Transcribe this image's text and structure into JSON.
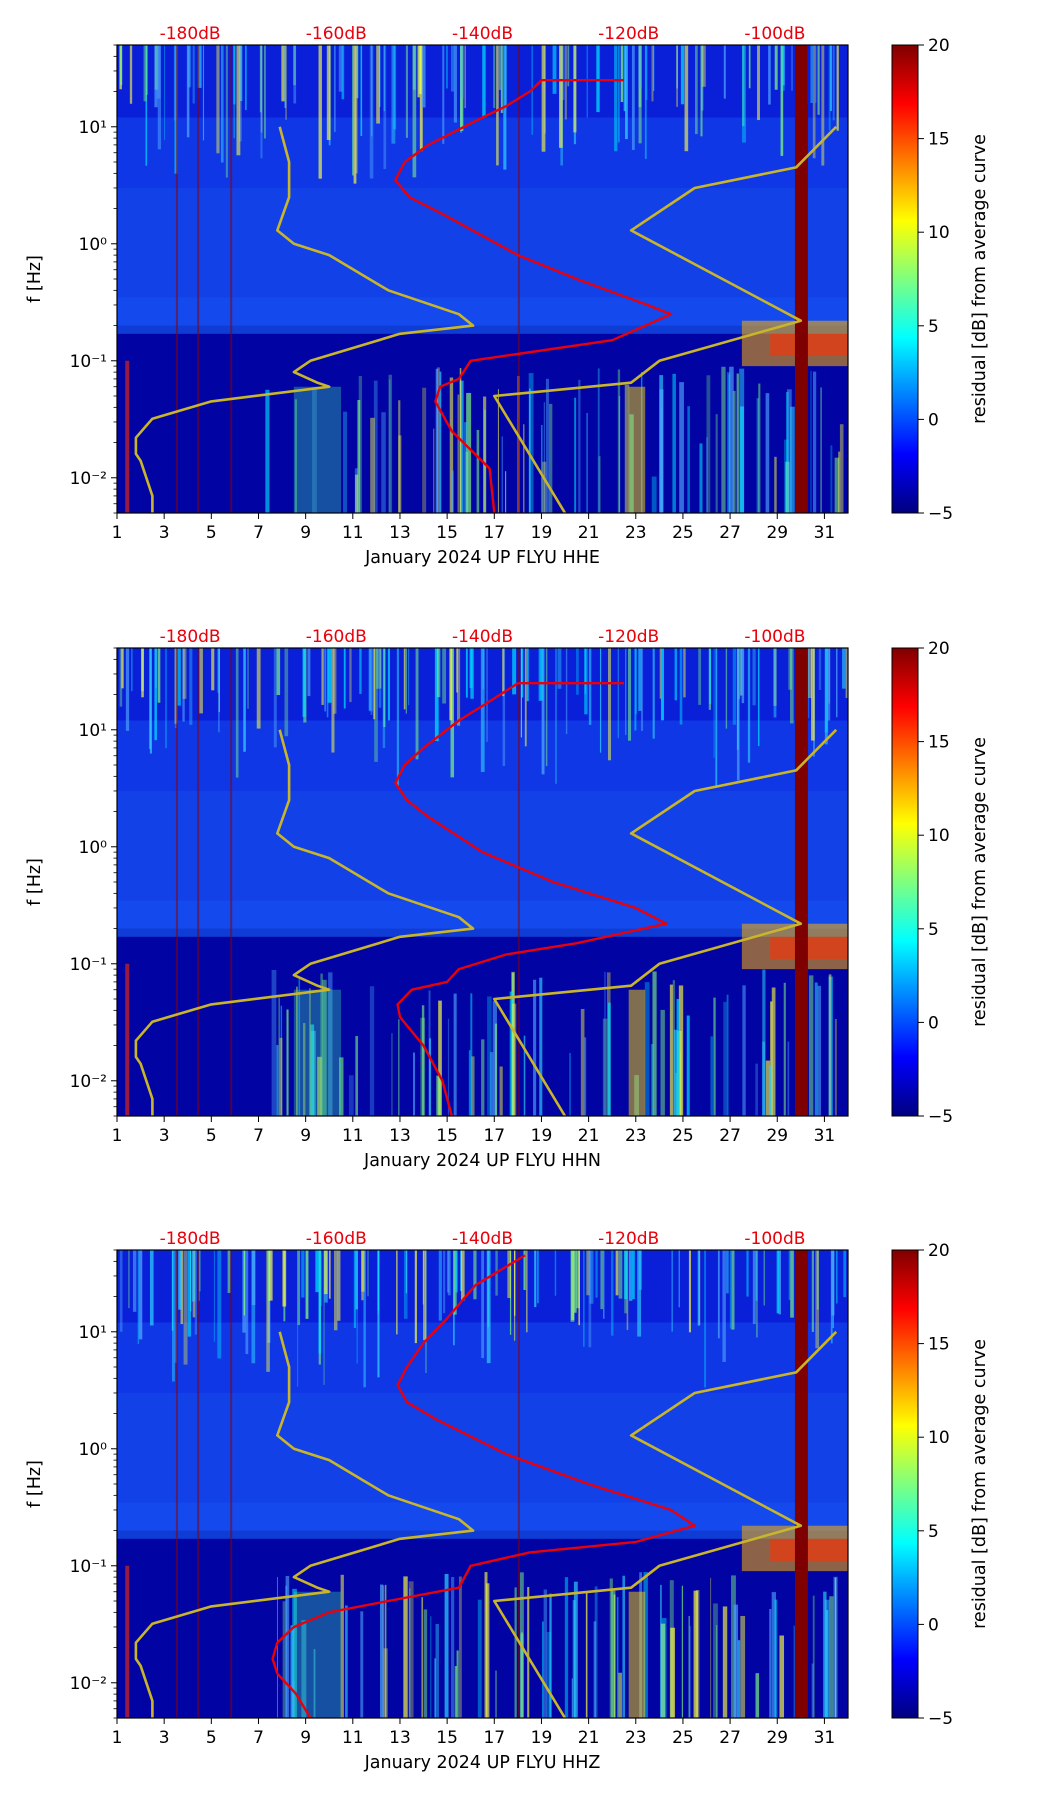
{
  "colors": {
    "red_curve": "#e8000b",
    "yellow_curve": "#c9b52a",
    "top_labels": "#e8000b",
    "colormap": [
      "#00007f",
      "#0000ff",
      "#007fff",
      "#00ffff",
      "#7fff7f",
      "#ffff00",
      "#ff7f00",
      "#ff0000",
      "#7f0000"
    ]
  },
  "chart_data": [
    {
      "type": "heatmap",
      "xlabel": "January 2024 UP FLYU  HHE",
      "ylabel": "f [Hz]",
      "y_scale": "log",
      "xlim": [
        1,
        32
      ],
      "ylim": [
        0.005,
        50
      ],
      "x_ticks": [
        "1",
        "3",
        "5",
        "7",
        "9",
        "11",
        "13",
        "15",
        "17",
        "19",
        "21",
        "23",
        "25",
        "27",
        "29",
        "31"
      ],
      "y_ticks": [
        "10⁻²",
        "10⁻¹",
        "10⁰",
        "10¹"
      ],
      "top_ticks": [
        "-180dB",
        "-160dB",
        "-140dB",
        "-120dB",
        "-100dB"
      ],
      "top_tick_values": [
        -180,
        -160,
        -140,
        -120,
        -100
      ],
      "top_axis_range_dB": [
        -190,
        -90
      ],
      "colorbar": {
        "label": "residual [dB] from average curve",
        "range": [
          -5,
          20
        ],
        "ticks": [
          "−5",
          "0",
          "5",
          "10",
          "15",
          "20"
        ]
      },
      "series": [
        {
          "color": "yellow",
          "x": [
            2.5,
            2.5,
            2.0,
            1.8,
            1.8,
            2.5,
            5.0,
            10.0,
            9.5,
            8.5,
            9.2,
            13.0,
            16.1,
            15.5,
            12.5,
            10.0,
            8.5,
            7.8,
            8.3,
            8.3,
            7.9
          ],
          "y": [
            0.005,
            0.007,
            0.014,
            0.016,
            0.022,
            0.032,
            0.045,
            0.06,
            0.065,
            0.08,
            0.1,
            0.17,
            0.2,
            0.25,
            0.4,
            0.8,
            1.0,
            1.3,
            2.5,
            5.0,
            10.0
          ]
        },
        {
          "color": "yellow",
          "x": [
            20.0,
            17.0,
            22.8,
            24.0,
            30.0,
            22.8,
            25.5,
            29.8,
            31.5
          ],
          "y": [
            0.005,
            0.05,
            0.065,
            0.1,
            0.22,
            1.3,
            3.0,
            4.5,
            10.0
          ]
        },
        {
          "color": "red",
          "x": [
            17.0,
            16.8,
            15.2,
            14.5,
            14.7,
            15.5,
            16.0,
            22.0,
            24.5,
            23.5,
            20.5,
            18.0,
            14.8,
            13.4,
            12.8,
            13.2,
            14.2,
            16.5,
            17.5,
            18.5,
            19.0,
            22.5
          ],
          "y": [
            0.005,
            0.012,
            0.025,
            0.045,
            0.06,
            0.07,
            0.1,
            0.15,
            0.25,
            0.3,
            0.5,
            0.8,
            1.8,
            2.5,
            3.5,
            5.0,
            7.0,
            12.0,
            15.0,
            20.0,
            25.0,
            25.0
          ]
        }
      ]
    },
    {
      "type": "heatmap",
      "xlabel": "January 2024 UP FLYU  HHN",
      "ylabel": "f [Hz]",
      "y_scale": "log",
      "xlim": [
        1,
        32
      ],
      "ylim": [
        0.005,
        50
      ],
      "x_ticks": [
        "1",
        "3",
        "5",
        "7",
        "9",
        "11",
        "13",
        "15",
        "17",
        "19",
        "21",
        "23",
        "25",
        "27",
        "29",
        "31"
      ],
      "y_ticks": [
        "10⁻²",
        "10⁻¹",
        "10⁰",
        "10¹"
      ],
      "top_ticks": [
        "-180dB",
        "-160dB",
        "-140dB",
        "-120dB",
        "-100dB"
      ],
      "top_tick_values": [
        -180,
        -160,
        -140,
        -120,
        -100
      ],
      "top_axis_range_dB": [
        -190,
        -90
      ],
      "colorbar": {
        "label": "residual [dB] from average curve",
        "range": [
          -5,
          20
        ],
        "ticks": [
          "−5",
          "0",
          "5",
          "10",
          "15",
          "20"
        ]
      },
      "series": [
        {
          "color": "yellow",
          "x": [
            2.5,
            2.5,
            2.0,
            1.8,
            1.8,
            2.5,
            5.0,
            10.0,
            9.5,
            8.5,
            9.2,
            13.0,
            16.1,
            15.5,
            12.5,
            10.0,
            8.5,
            7.8,
            8.3,
            8.3,
            7.9
          ],
          "y": [
            0.005,
            0.007,
            0.014,
            0.016,
            0.022,
            0.032,
            0.045,
            0.06,
            0.065,
            0.08,
            0.1,
            0.17,
            0.2,
            0.25,
            0.4,
            0.8,
            1.0,
            1.3,
            2.5,
            5.0,
            10.0
          ]
        },
        {
          "color": "yellow",
          "x": [
            20.0,
            17.0,
            22.8,
            24.0,
            30.0,
            22.8,
            25.5,
            29.8,
            31.5
          ],
          "y": [
            0.005,
            0.05,
            0.065,
            0.1,
            0.22,
            1.3,
            3.0,
            4.5,
            10.0
          ]
        },
        {
          "color": "red",
          "x": [
            15.2,
            14.8,
            14.0,
            13.0,
            12.9,
            13.5,
            15.0,
            15.5,
            17.5,
            20.5,
            24.3,
            23.0,
            19.5,
            16.5,
            14.2,
            13.3,
            12.8,
            13.2,
            14.0,
            15.5,
            16.5,
            18.0,
            22.5
          ],
          "y": [
            0.005,
            0.01,
            0.02,
            0.035,
            0.045,
            0.06,
            0.07,
            0.09,
            0.12,
            0.15,
            0.22,
            0.3,
            0.5,
            0.9,
            1.8,
            2.5,
            3.5,
            5.0,
            7.0,
            12.0,
            16.0,
            25.0,
            25.0
          ]
        }
      ]
    },
    {
      "type": "heatmap",
      "xlabel": "January 2024 UP FLYU  HHZ",
      "ylabel": "f [Hz]",
      "y_scale": "log",
      "xlim": [
        1,
        32
      ],
      "ylim": [
        0.005,
        50
      ],
      "x_ticks": [
        "1",
        "3",
        "5",
        "7",
        "9",
        "11",
        "13",
        "15",
        "17",
        "19",
        "21",
        "23",
        "25",
        "27",
        "29",
        "31"
      ],
      "y_ticks": [
        "10⁻²",
        "10⁻¹",
        "10⁰",
        "10¹"
      ],
      "top_ticks": [
        "-180dB",
        "-160dB",
        "-140dB",
        "-120dB",
        "-100dB"
      ],
      "top_tick_values": [
        -180,
        -160,
        -140,
        -120,
        -100
      ],
      "top_axis_range_dB": [
        -190,
        -90
      ],
      "colorbar": {
        "label": "residual [dB] from average curve",
        "range": [
          -5,
          20
        ],
        "ticks": [
          "−5",
          "0",
          "5",
          "10",
          "15",
          "20"
        ]
      },
      "series": [
        {
          "color": "yellow",
          "x": [
            2.5,
            2.5,
            2.0,
            1.8,
            1.8,
            2.5,
            5.0,
            10.0,
            9.5,
            8.5,
            9.2,
            13.0,
            16.1,
            15.5,
            12.5,
            10.0,
            8.5,
            7.8,
            8.3,
            8.3,
            7.9
          ],
          "y": [
            0.005,
            0.007,
            0.014,
            0.016,
            0.022,
            0.032,
            0.045,
            0.06,
            0.065,
            0.08,
            0.1,
            0.17,
            0.2,
            0.25,
            0.4,
            0.8,
            1.0,
            1.3,
            2.5,
            5.0,
            10.0
          ]
        },
        {
          "color": "yellow",
          "x": [
            20.0,
            17.0,
            22.8,
            24.0,
            30.0,
            22.8,
            25.5,
            29.8,
            31.5
          ],
          "y": [
            0.005,
            0.05,
            0.065,
            0.1,
            0.22,
            1.3,
            3.0,
            4.5,
            10.0
          ]
        },
        {
          "color": "red",
          "x": [
            9.2,
            8.6,
            7.8,
            7.6,
            7.8,
            8.5,
            10.0,
            12.5,
            15.5,
            16.0,
            18.5,
            23.0,
            25.5,
            24.5,
            21.0,
            17.5,
            14.5,
            13.3,
            12.9,
            13.3,
            14.0,
            15.0,
            16.2,
            18.3
          ],
          "y": [
            0.005,
            0.008,
            0.012,
            0.016,
            0.022,
            0.03,
            0.04,
            0.05,
            0.065,
            0.1,
            0.13,
            0.16,
            0.22,
            0.3,
            0.5,
            0.9,
            1.8,
            2.5,
            3.5,
            5.0,
            8.0,
            13.0,
            25.0,
            45.0
          ]
        }
      ]
    }
  ]
}
